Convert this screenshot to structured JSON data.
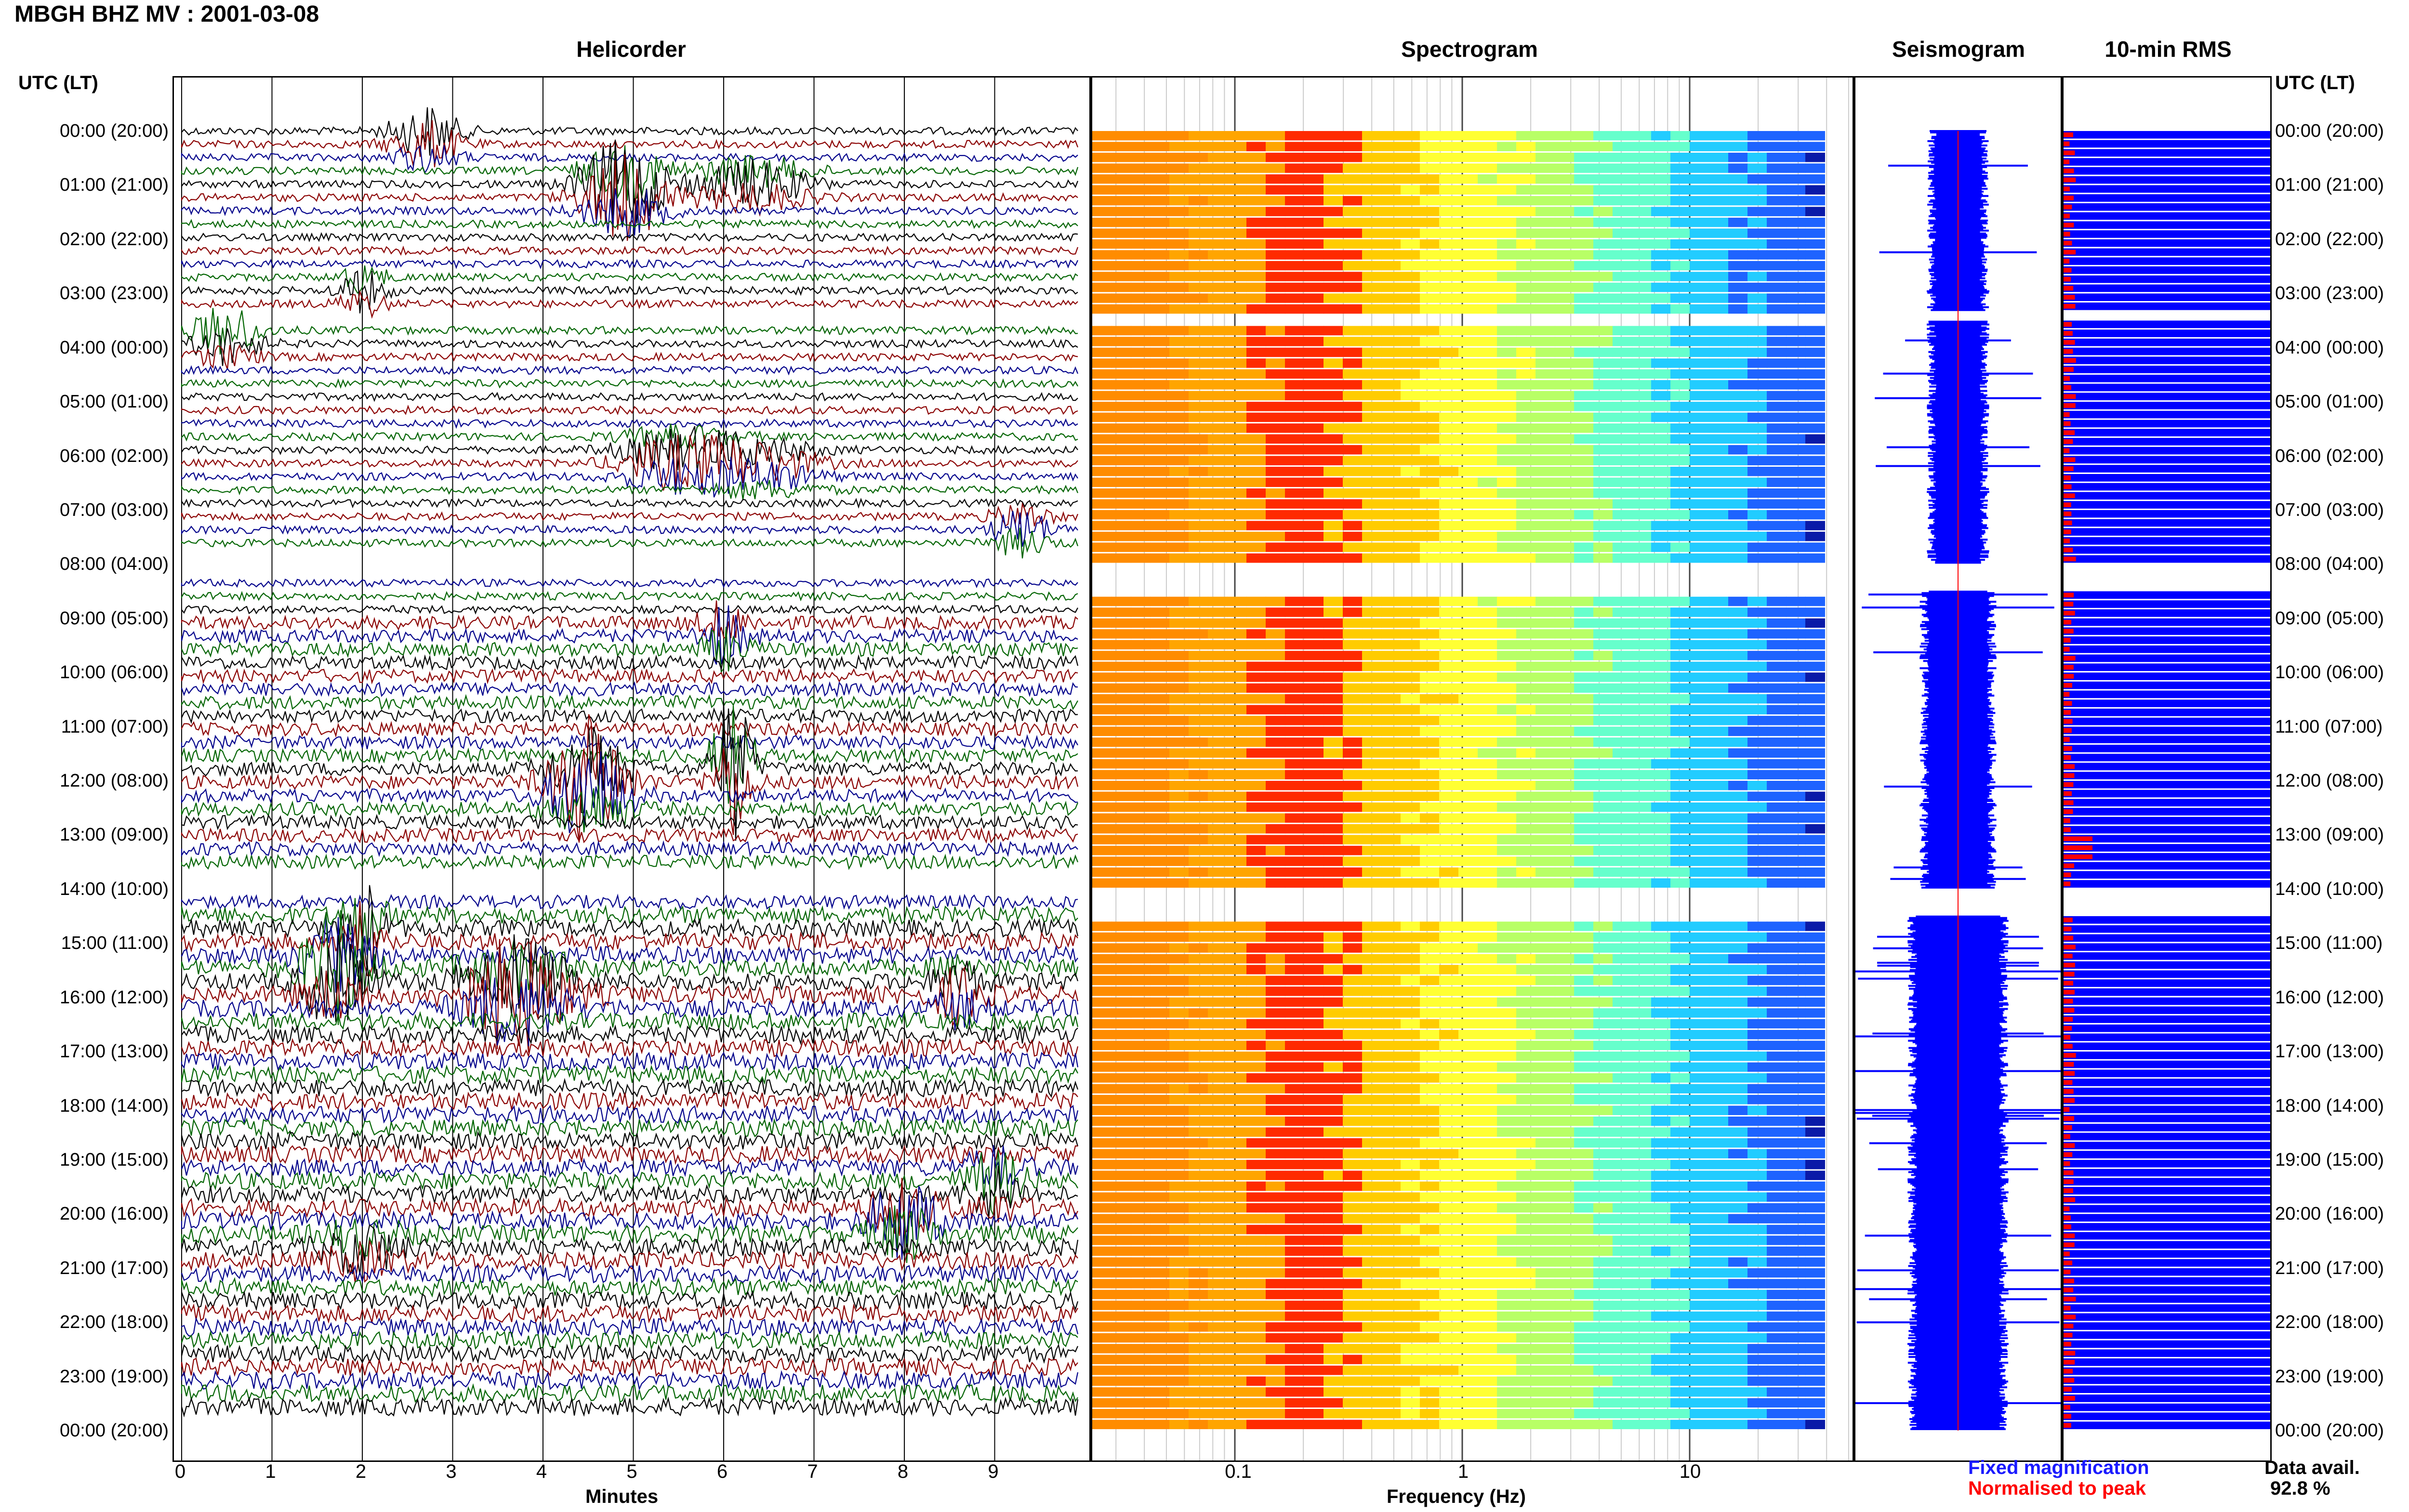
{
  "header": {
    "title": "MBGH BHZ MV : 2001-03-08"
  },
  "panels": {
    "helicorder": "Helicorder",
    "spectrogram": "Spectrogram",
    "seismogram": "Seismogram",
    "rms": "10-min RMS"
  },
  "axes": {
    "left_header": "UTC (LT)",
    "right_header": "UTC (LT)",
    "helicorder_xlabel": "Minutes",
    "spectrogram_xlabel": "Frequency (Hz)",
    "minute_ticks": [
      "0",
      "1",
      "2",
      "3",
      "4",
      "5",
      "6",
      "7",
      "8",
      "9"
    ],
    "freq_ticks": [
      "0.1",
      "1",
      "10"
    ]
  },
  "hour_labels": [
    "00:00 (20:00)",
    "01:00 (21:00)",
    "02:00 (22:00)",
    "03:00 (23:00)",
    "04:00 (00:00)",
    "05:00 (01:00)",
    "06:00 (02:00)",
    "07:00 (03:00)",
    "08:00 (04:00)",
    "09:00 (05:00)",
    "10:00 (06:00)",
    "11:00 (07:00)",
    "12:00 (08:00)",
    "13:00 (09:00)",
    "14:00 (10:00)",
    "15:00 (11:00)",
    "16:00 (12:00)",
    "17:00 (13:00)",
    "18:00 (14:00)",
    "19:00 (15:00)",
    "20:00 (16:00)",
    "21:00 (17:00)",
    "22:00 (18:00)",
    "23:00 (19:00)",
    "00:00 (20:00)"
  ],
  "legend": {
    "fixed": "Fixed magnification",
    "normalised": "Normalised to peak",
    "fixed_color": "#1a1aff",
    "normalised_color": "#ff0000"
  },
  "availability": {
    "label": "Data avail.",
    "value": "92.8 %"
  },
  "colors": {
    "trace_cycle": [
      "#000000",
      "#8b0000",
      "#00008b",
      "#006400"
    ],
    "seismogram": "#0000ff",
    "rms_fixed": "#0000ff",
    "rms_norm": "#ff0000"
  },
  "data_gaps_utc": [
    "03:20-03:50",
    "08:00-08:30",
    "14:00-14:30"
  ]
}
